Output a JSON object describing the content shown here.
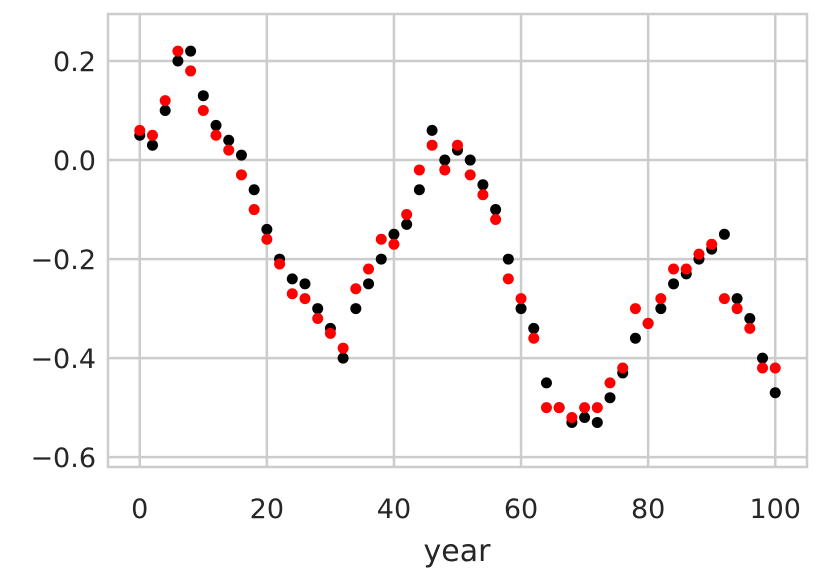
{
  "chart_data": {
    "type": "scatter",
    "title": "",
    "xlabel": "year",
    "ylabel": "",
    "xlim": [
      -5,
      105
    ],
    "ylim": [
      -0.62,
      0.295
    ],
    "xticks": [
      0,
      20,
      40,
      60,
      80,
      100
    ],
    "xtick_labels": [
      "0",
      "20",
      "40",
      "60",
      "80",
      "100"
    ],
    "yticks": [
      -0.6,
      -0.4,
      -0.2,
      0.0,
      0.2
    ],
    "ytick_labels": [
      "−0.6",
      "−0.4",
      "−0.2",
      "0.0",
      "0.2"
    ],
    "grid": true,
    "legend": "none",
    "series": [
      {
        "color": "#000000",
        "x": [
          0,
          2,
          4,
          6,
          8,
          10,
          12,
          14,
          16,
          18,
          20,
          22,
          24,
          26,
          28,
          30,
          32,
          34,
          36,
          38,
          40,
          42,
          44,
          46,
          48,
          50,
          52,
          54,
          56,
          58,
          60,
          62,
          64,
          66,
          68,
          70,
          72,
          74,
          76,
          78,
          80,
          82,
          84,
          86,
          88,
          90,
          92,
          94,
          96,
          98,
          100
        ],
        "values": [
          0.05,
          0.03,
          0.1,
          0.2,
          0.22,
          0.13,
          0.07,
          0.04,
          0.01,
          -0.06,
          -0.14,
          -0.2,
          -0.24,
          -0.25,
          -0.3,
          -0.34,
          -0.4,
          -0.3,
          -0.25,
          -0.2,
          -0.15,
          -0.13,
          -0.06,
          0.06,
          0.0,
          0.02,
          0.0,
          -0.05,
          -0.1,
          -0.2,
          -0.3,
          -0.34,
          -0.45,
          -0.5,
          -0.53,
          -0.52,
          -0.53,
          -0.48,
          -0.43,
          -0.36,
          -0.33,
          -0.3,
          -0.25,
          -0.23,
          -0.2,
          -0.18,
          -0.15,
          -0.28,
          -0.32,
          -0.4,
          -0.47
        ]
      },
      {
        "color": "#ff0000",
        "x": [
          0,
          2,
          4,
          6,
          8,
          10,
          12,
          14,
          16,
          18,
          20,
          22,
          24,
          26,
          28,
          30,
          32,
          34,
          36,
          38,
          40,
          42,
          44,
          46,
          48,
          50,
          52,
          54,
          56,
          58,
          60,
          62,
          64,
          66,
          68,
          70,
          72,
          74,
          76,
          78,
          80,
          82,
          84,
          86,
          88,
          90,
          92,
          94,
          96,
          98,
          100
        ],
        "values": [
          0.06,
          0.05,
          0.12,
          0.22,
          0.18,
          0.1,
          0.05,
          0.02,
          -0.03,
          -0.1,
          -0.16,
          -0.21,
          -0.27,
          -0.28,
          -0.32,
          -0.35,
          -0.38,
          -0.26,
          -0.22,
          -0.16,
          -0.17,
          -0.11,
          -0.02,
          0.03,
          -0.02,
          0.03,
          -0.03,
          -0.07,
          -0.12,
          -0.24,
          -0.28,
          -0.36,
          -0.5,
          -0.5,
          -0.52,
          -0.5,
          -0.5,
          -0.45,
          -0.42,
          -0.3,
          -0.33,
          -0.28,
          -0.22,
          -0.22,
          -0.19,
          -0.17,
          -0.28,
          -0.3,
          -0.34,
          -0.42,
          -0.42
        ]
      }
    ]
  }
}
